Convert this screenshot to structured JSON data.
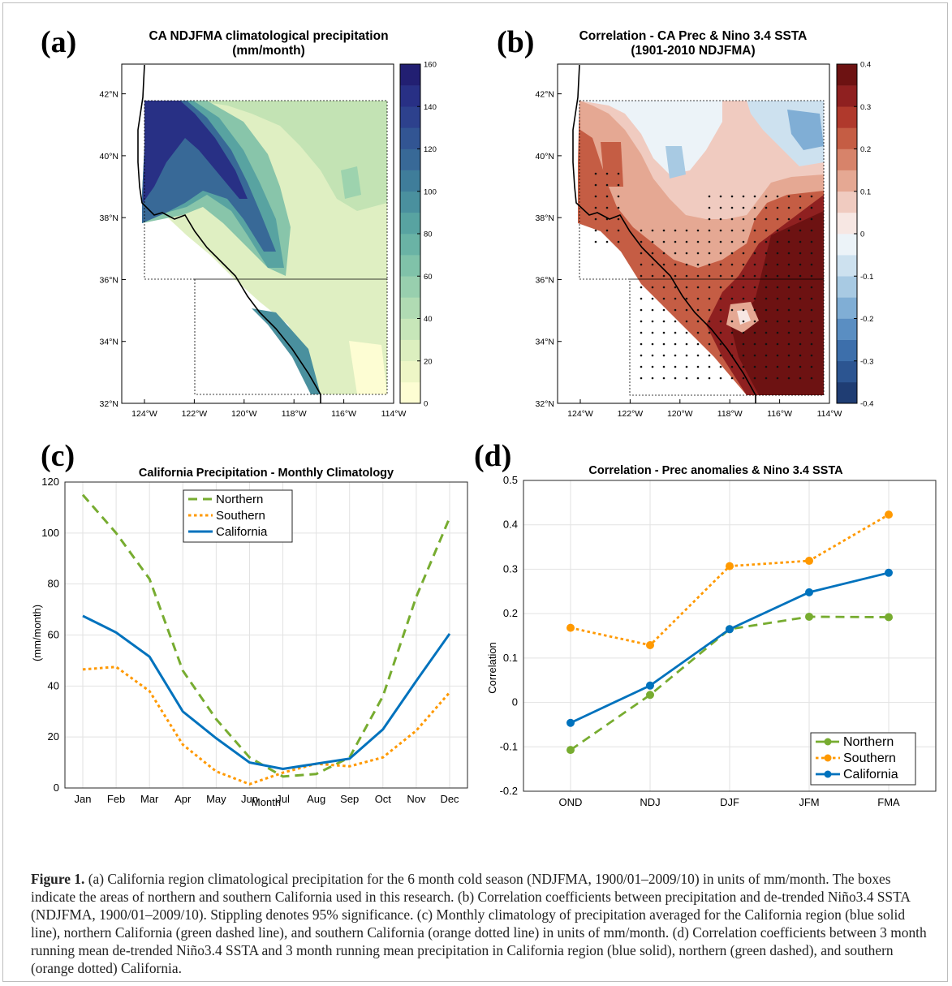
{
  "panels": {
    "a": {
      "letter": "(a)",
      "title_line1": "CA NDJFMA climatological precipitation",
      "title_line2": "(mm/month)",
      "lat_ticks": [
        "32°N",
        "34°N",
        "36°N",
        "38°N",
        "40°N",
        "42°N"
      ],
      "lon_ticks": [
        "124°W",
        "122°W",
        "120°W",
        "118°W",
        "116°W",
        "114°W"
      ],
      "colorbar_ticks": [
        "0",
        "20",
        "40",
        "60",
        "80",
        "100",
        "120",
        "140",
        "160"
      ],
      "colorbar_colors": [
        "#fdfdd3",
        "#eef6c6",
        "#dcefbf",
        "#c7e6b9",
        "#b0dbb3",
        "#98cfae",
        "#80c2a9",
        "#6ab3a5",
        "#58a3a1",
        "#4a909e",
        "#3f7d9a",
        "#386997",
        "#325593",
        "#2d418d",
        "#283085",
        "#221f72"
      ]
    },
    "b": {
      "letter": "(b)",
      "title_line1": "Correlation - CA Prec & Nino 3.4 SSTA",
      "title_line2": "(1901-2010 NDJFMA)",
      "lat_ticks": [
        "32°N",
        "34°N",
        "36°N",
        "38°N",
        "40°N",
        "42°N"
      ],
      "lon_ticks": [
        "124°W",
        "122°W",
        "120°W",
        "118°W",
        "116°W",
        "114°W"
      ],
      "colorbar_ticks": [
        "-0.4",
        "-0.3",
        "-0.2",
        "-0.1",
        "0",
        "0.1",
        "0.2",
        "0.3",
        "0.4"
      ],
      "colorbar_colors": [
        "#1f3d73",
        "#2c5591",
        "#3d6fab",
        "#5a8ec2",
        "#80aed5",
        "#a8cae3",
        "#cde1ef",
        "#ecf3f8",
        "#f7e7e3",
        "#f0cbc0",
        "#e5a893",
        "#d7836a",
        "#c55d44",
        "#b0392c",
        "#8f2020",
        "#6d1212"
      ]
    },
    "c": {
      "letter": "(c)",
      "title": "California Precipitation - Monthly Climatology",
      "ylabel": "(mm/month)",
      "xlabel": "Month",
      "legend": [
        "Northern",
        "Southern",
        "California"
      ]
    },
    "d": {
      "letter": "(d)",
      "title": "Correlation - Prec anomalies & Nino 3.4 SSTA",
      "ylabel": "Correlation",
      "legend": [
        "Northern",
        "Southern",
        "California"
      ]
    }
  },
  "chart_data": [
    {
      "type": "line",
      "title": "California Precipitation - Monthly Climatology",
      "xlabel": "Month",
      "ylabel": "(mm/month)",
      "categories": [
        "Jan",
        "Feb",
        "Mar",
        "Apr",
        "May",
        "Jun",
        "Jul",
        "Aug",
        "Sep",
        "Oct",
        "Nov",
        "Dec"
      ],
      "ylim": [
        0,
        120
      ],
      "yticks": [
        0,
        20,
        40,
        60,
        80,
        100,
        120
      ],
      "grid": true,
      "legend_position": "top-center",
      "series": [
        {
          "name": "Northern",
          "color": "#77ac30",
          "style": "dashed",
          "values": [
            115,
            100,
            82,
            46,
            27,
            12,
            4.5,
            5.5,
            12,
            36,
            75,
            106
          ]
        },
        {
          "name": "Southern",
          "color": "#ff9900",
          "style": "dotted",
          "values": [
            46.5,
            47.5,
            38,
            17,
            6.5,
            1.5,
            6,
            9.5,
            8.5,
            12,
            22.5,
            37.5
          ]
        },
        {
          "name": "California",
          "color": "#0072bd",
          "style": "solid",
          "values": [
            67.5,
            61,
            51.5,
            30,
            19.5,
            10,
            7.5,
            9.5,
            11.5,
            23,
            42,
            60.5
          ]
        }
      ]
    },
    {
      "type": "line",
      "title": "Correlation - Prec anomalies & Nino 3.4 SSTA",
      "xlabel": "",
      "ylabel": "Correlation",
      "categories": [
        "OND",
        "NDJ",
        "DJF",
        "JFM",
        "FMA"
      ],
      "ylim": [
        -0.2,
        0.5
      ],
      "yticks": [
        -0.2,
        -0.1,
        0,
        0.1,
        0.2,
        0.3,
        0.4,
        0.5
      ],
      "grid": true,
      "legend_position": "bottom-right",
      "series": [
        {
          "name": "Northern",
          "color": "#77ac30",
          "style": "dashed",
          "values": [
            -0.107,
            0.017,
            0.165,
            0.193,
            0.192
          ]
        },
        {
          "name": "Southern",
          "color": "#ff9900",
          "style": "dotted",
          "values": [
            0.168,
            0.129,
            0.307,
            0.319,
            0.423
          ]
        },
        {
          "name": "California",
          "color": "#0072bd",
          "style": "solid",
          "values": [
            -0.046,
            0.038,
            0.165,
            0.248,
            0.292
          ]
        }
      ]
    }
  ],
  "caption": {
    "label": "Figure 1.",
    "text": " (a) California region climatological precipitation for the 6 month cold season (NDJFMA, 1900/01–2009/10) in units of mm/month. The boxes indicate the areas of northern and southern California used in this research. (b) Correlation coefficients between precipitation and de-trended Niño3.4 SSTA (NDJFMA, 1900/01–2009/10). Stippling denotes 95% significance. (c) Monthly climatology of precipitation averaged for the California region (blue solid line), northern California (green dashed line), and southern California (orange dotted line) in units of mm/month. (d) Correlation coefficients between 3 month running mean de-trended Niño3.4 SSTA and 3 month running mean precipitation in California region (blue solid), northern (green dashed), and southern (orange dotted) California."
  }
}
